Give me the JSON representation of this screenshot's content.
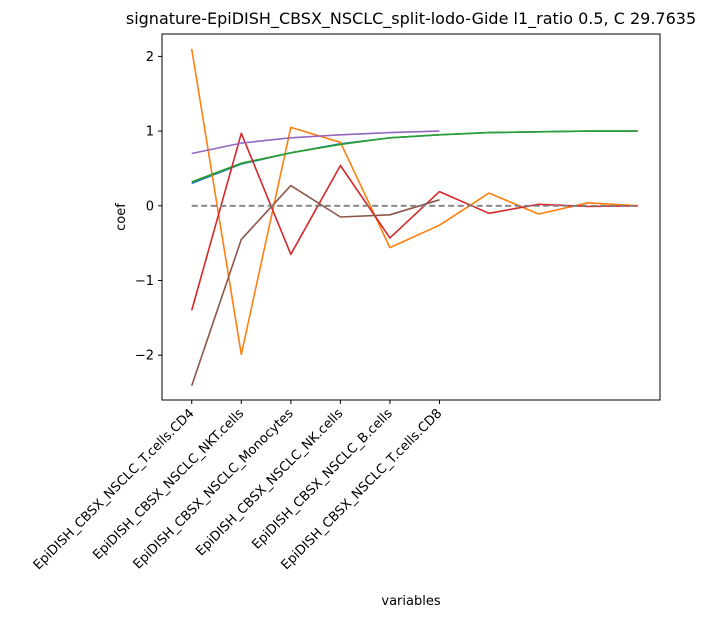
{
  "chart_data": {
    "type": "line",
    "title": "signature-EpiDISH_CBSX_NSCLC_split-lodo-Gide l1_ratio 0.5, C 29.7635",
    "xlabel": "variables",
    "ylabel": "coef",
    "categories": [
      "EpiDISH_CBSX_NSCLC_T.cells.CD4",
      "EpiDISH_CBSX_NSCLC_NKT.cells",
      "EpiDISH_CBSX_NSCLC_Monocytes",
      "EpiDISH_CBSX_NSCLC_NK.cells",
      "EpiDISH_CBSX_NSCLC_B.cells",
      "EpiDISH_CBSX_NSCLC_T.cells.CD8"
    ],
    "xlim": [
      -0.6,
      9.45
    ],
    "ylim": [
      -2.6,
      2.3
    ],
    "yticks": [
      -2,
      -1,
      0,
      1,
      2
    ],
    "ytick_labels": [
      "−2",
      "−1",
      "0",
      "1",
      "2"
    ],
    "grid": false,
    "series": [
      {
        "color": "#1f77b4",
        "x": [
          0,
          1,
          2,
          3,
          4,
          5,
          6,
          7,
          8,
          9
        ],
        "y": [
          0.3,
          0.56,
          0.71,
          0.83,
          0.91,
          0.95,
          0.98,
          0.99,
          1.0,
          1.0
        ]
      },
      {
        "color": "#ff7f0e",
        "x": [
          0,
          1,
          2,
          3,
          4,
          5,
          6,
          7,
          8,
          9
        ],
        "y": [
          2.1,
          -1.99,
          1.05,
          0.85,
          -0.56,
          -0.26,
          0.17,
          -0.11,
          0.04,
          0.0
        ]
      },
      {
        "color": "#2ca02c",
        "x": [
          0,
          1,
          2,
          3,
          4,
          5,
          6,
          7,
          8,
          9
        ],
        "y": [
          0.32,
          0.57,
          0.71,
          0.82,
          0.91,
          0.95,
          0.98,
          0.99,
          1.0,
          1.0
        ]
      },
      {
        "color": "#d62728",
        "x": [
          0,
          1,
          2,
          3,
          4,
          5,
          6,
          7,
          8,
          9
        ],
        "y": [
          -1.4,
          0.97,
          -0.65,
          0.54,
          -0.43,
          0.19,
          -0.1,
          0.02,
          -0.01,
          0.0
        ]
      },
      {
        "color": "#9467bd",
        "x": [
          0,
          1,
          2,
          3,
          4,
          5
        ],
        "y": [
          0.7,
          0.84,
          0.91,
          0.95,
          0.98,
          1.0
        ]
      },
      {
        "color": "#8c564b",
        "x": [
          0,
          1,
          2,
          3,
          4,
          5
        ],
        "y": [
          -2.41,
          -0.45,
          0.27,
          -0.15,
          -0.12,
          0.08
        ]
      },
      {
        "color": "#808080",
        "dashed": true,
        "x": [
          0,
          9
        ],
        "y": [
          0,
          0
        ]
      }
    ]
  }
}
